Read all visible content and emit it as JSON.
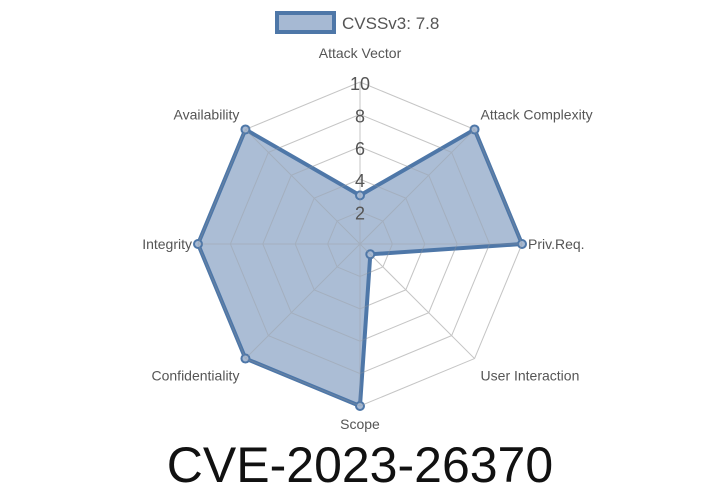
{
  "chart_data": {
    "type": "radar",
    "title": "CVE-2023-26370",
    "axes": [
      "Attack Vector",
      "Attack Complexity",
      "Priv.Req.",
      "User Interaction",
      "Scope",
      "Confidentiality",
      "Integrity",
      "Availability"
    ],
    "tick_labels": [
      "2",
      "4",
      "6",
      "8",
      "10"
    ],
    "range": [
      0,
      10
    ],
    "grid": true,
    "legend_position": "top",
    "series": [
      {
        "name": "CVSSv3: 7.8",
        "values": [
          3.0,
          10,
          10,
          0.9,
          10,
          10,
          10,
          10
        ],
        "color": "#4e77a8",
        "fill": "#a6b9d3"
      }
    ]
  }
}
